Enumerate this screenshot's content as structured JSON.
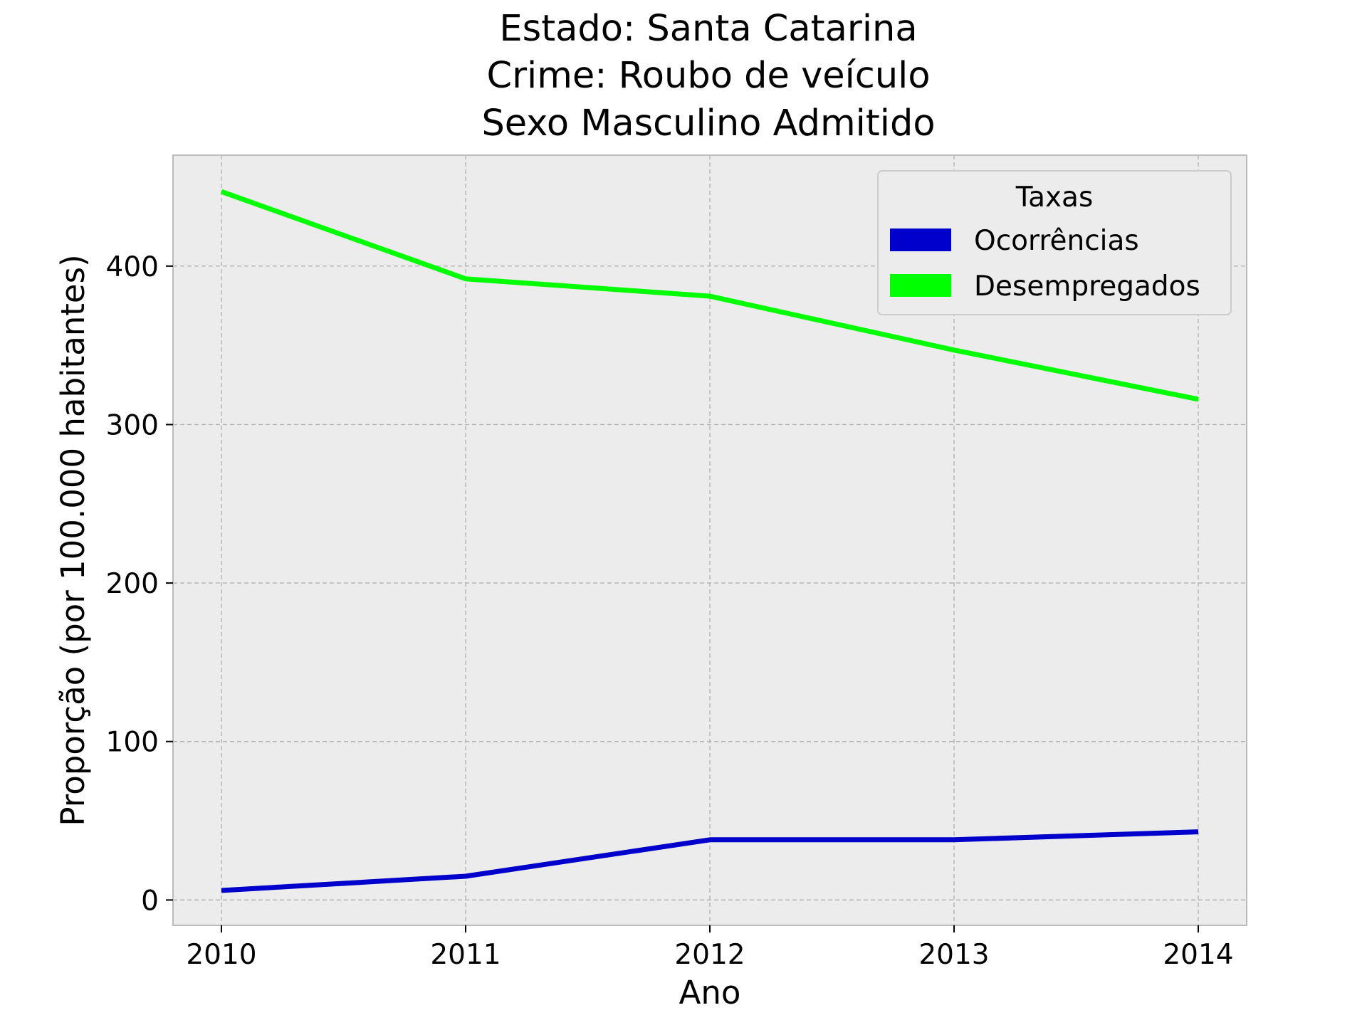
{
  "chart_data": {
    "type": "line",
    "title_lines": [
      "Estado: Santa Catarina",
      "Crime: Roubo de veículo",
      "Sexo  Masculino   Admitido"
    ],
    "xlabel": "Ano",
    "ylabel": "Proporção (por 100.000 habitantes)",
    "categories": [
      "2010",
      "2011",
      "2012",
      "2013",
      "2014"
    ],
    "yticks": [
      "0",
      "100",
      "200",
      "300",
      "400"
    ],
    "ylim": [
      -16,
      470
    ],
    "grid": true,
    "legend": {
      "title": "Taxas",
      "placement": "top-right"
    },
    "series": [
      {
        "name": "Ocorrências",
        "color": "#0000cc",
        "values": [
          6,
          15,
          38,
          38,
          43
        ]
      },
      {
        "name": "Desempregados",
        "color": "#00ff00",
        "values": [
          447,
          392,
          381,
          347,
          316
        ]
      }
    ]
  },
  "colors": {
    "plot_background": "#ececec",
    "frame": "#bbbbbb"
  }
}
